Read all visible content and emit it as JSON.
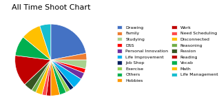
{
  "chart_data": {
    "type": "pie",
    "title": "All Time Shoot Chart",
    "categories": [
      "Drawing",
      "Family",
      "Studying",
      "DSS",
      "Personal Innovation",
      "Life Improvement",
      "Job Shop",
      "Exercise",
      "Others",
      "Hobbies",
      "Work",
      "Need Scheduling",
      "Disconnected",
      "Reasoning",
      "Passion",
      "Reading",
      "Vocab",
      "Math",
      "Life Management"
    ],
    "values": [
      22,
      3,
      4,
      2,
      3,
      5,
      2,
      2,
      3,
      4,
      2,
      2,
      3,
      2,
      4,
      14,
      9,
      9,
      5
    ],
    "colors": [
      "#4472C4",
      "#ED7D31",
      "#A9D18E",
      "#FF0000",
      "#7030A0",
      "#00B0F0",
      "#002060",
      "#92D050",
      "#00B050",
      "#FF9900",
      "#C00000",
      "#FF4B4B",
      "#FFC000",
      "#70AD47",
      "#375623",
      "#C00000",
      "#00B050",
      "#FFC000",
      "#17BECF"
    ],
    "legend": "right"
  }
}
